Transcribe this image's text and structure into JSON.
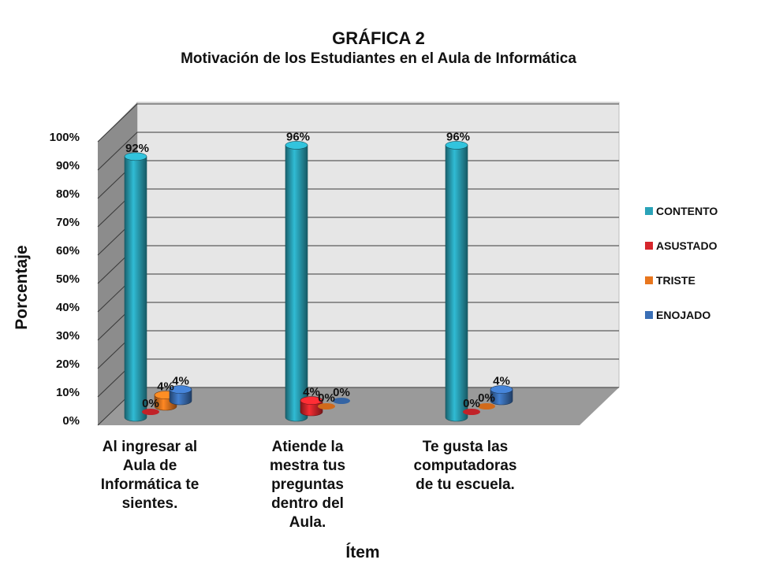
{
  "chart_data": {
    "type": "bar",
    "title": "GRÁFICA 2",
    "subtitle": "Motivación de los Estudiantes en el Aula de Informática",
    "xlabel": "Ítem",
    "ylabel": "Porcentaje",
    "ylim": [
      0,
      100
    ],
    "y_ticks": [
      "0%",
      "10%",
      "20%",
      "30%",
      "40%",
      "50%",
      "60%",
      "70%",
      "80%",
      "90%",
      "100%"
    ],
    "categories": [
      "Al ingresar al Aula de Informática te sientes.",
      "Atiende la mestra tus preguntas dentro del Aula.",
      "Te gusta las computadoras de tu escuela."
    ],
    "category_lines": [
      [
        "Al ingresar al",
        "Aula de",
        "Informática te",
        "sientes."
      ],
      [
        "Atiende la",
        "mestra tus",
        "preguntas",
        "dentro del",
        "Aula."
      ],
      [
        "Te gusta las",
        "computadoras",
        "de tu escuela."
      ]
    ],
    "series": [
      {
        "name": "CONTENTO",
        "values": [
          92,
          96,
          96
        ],
        "labels": [
          "92%",
          "96%",
          "96%"
        ],
        "color": "#2aa3b8"
      },
      {
        "name": "ASUSTADO",
        "values": [
          0,
          4,
          0
        ],
        "labels": [
          "0%",
          "4%",
          "0%"
        ],
        "color": "#d6262c"
      },
      {
        "name": "TRISTE",
        "values": [
          4,
          0,
          0
        ],
        "labels": [
          "4%",
          "0%",
          "0%"
        ],
        "color": "#e8761e"
      },
      {
        "name": "ENOJADO",
        "values": [
          4,
          0,
          4
        ],
        "labels": [
          "4%",
          "0%",
          "4%"
        ],
        "color": "#3a6fb6"
      }
    ],
    "legend_position": "right",
    "grid": true,
    "three_d": true
  }
}
